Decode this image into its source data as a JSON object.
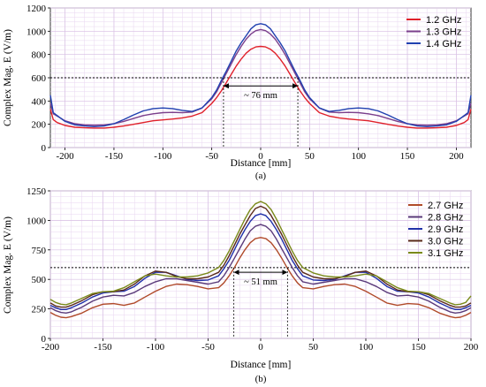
{
  "chart_data": [
    {
      "type": "line",
      "caption": "(a)",
      "xlabel": "Distance [mm]",
      "ylabel": "Complex Mag. E (V/m)",
      "xlim": [
        -215,
        215
      ],
      "ylim": [
        0,
        1200
      ],
      "xticks": [
        -200,
        -150,
        -100,
        -50,
        0,
        50,
        100,
        150,
        200
      ],
      "yticks": [
        0,
        200,
        400,
        600,
        800,
        1000,
        1200
      ],
      "grid": true,
      "legend_position": "top-right",
      "threshold": 600,
      "annotation": {
        "text": "~ 76 mm",
        "x_range": [
          -38,
          38
        ],
        "y": 530
      },
      "series": [
        {
          "name": "1.2 GHz",
          "color": "#e0202a",
          "x": [
            -215,
            -212,
            -208,
            -200,
            -190,
            -180,
            -170,
            -160,
            -150,
            -140,
            -130,
            -120,
            -110,
            -100,
            -90,
            -80,
            -70,
            -60,
            -50,
            -45,
            -40,
            -35,
            -30,
            -25,
            -20,
            -15,
            -10,
            -5,
            0,
            5,
            10,
            15,
            20,
            25,
            30,
            35,
            40,
            45,
            50,
            60,
            70,
            80,
            90,
            100,
            110,
            120,
            130,
            140,
            150,
            160,
            170,
            180,
            190,
            200,
            208,
            212,
            215
          ],
          "y": [
            330,
            240,
            215,
            190,
            175,
            170,
            168,
            168,
            175,
            185,
            200,
            215,
            230,
            238,
            245,
            255,
            270,
            300,
            380,
            430,
            490,
            560,
            630,
            700,
            760,
            810,
            845,
            865,
            870,
            865,
            845,
            810,
            760,
            700,
            630,
            560,
            490,
            430,
            380,
            300,
            270,
            255,
            245,
            238,
            230,
            215,
            200,
            185,
            175,
            168,
            168,
            170,
            175,
            190,
            215,
            240,
            330
          ]
        },
        {
          "name": "1.3 GHz",
          "color": "#7b3f8c",
          "x": [
            -215,
            -212,
            -208,
            -200,
            -190,
            -180,
            -170,
            -160,
            -150,
            -140,
            -130,
            -120,
            -110,
            -100,
            -90,
            -80,
            -70,
            -60,
            -50,
            -45,
            -40,
            -35,
            -30,
            -25,
            -20,
            -15,
            -10,
            -5,
            0,
            5,
            10,
            15,
            20,
            25,
            30,
            35,
            40,
            45,
            50,
            60,
            70,
            80,
            90,
            100,
            110,
            120,
            130,
            140,
            150,
            160,
            170,
            180,
            190,
            200,
            208,
            212,
            215
          ],
          "y": [
            380,
            290,
            270,
            230,
            205,
            195,
            192,
            195,
            205,
            225,
            250,
            275,
            290,
            300,
            302,
            300,
            305,
            340,
            420,
            480,
            560,
            640,
            720,
            800,
            870,
            930,
            975,
            1005,
            1015,
            1005,
            975,
            930,
            870,
            800,
            720,
            640,
            560,
            480,
            420,
            340,
            305,
            300,
            302,
            300,
            290,
            275,
            250,
            225,
            205,
            195,
            192,
            195,
            205,
            230,
            270,
            290,
            380
          ]
        },
        {
          "name": "1.4 GHz",
          "color": "#2040b0",
          "x": [
            -215,
            -212,
            -208,
            -200,
            -190,
            -180,
            -170,
            -160,
            -150,
            -140,
            -130,
            -120,
            -110,
            -100,
            -90,
            -80,
            -70,
            -60,
            -50,
            -45,
            -40,
            -35,
            -30,
            -25,
            -20,
            -15,
            -10,
            -5,
            0,
            5,
            10,
            15,
            20,
            25,
            30,
            35,
            40,
            45,
            50,
            60,
            70,
            80,
            90,
            100,
            110,
            120,
            130,
            140,
            150,
            160,
            170,
            180,
            190,
            200,
            208,
            212,
            215
          ],
          "y": [
            450,
            300,
            275,
            225,
            195,
            185,
            180,
            185,
            205,
            240,
            280,
            315,
            335,
            340,
            335,
            320,
            310,
            340,
            430,
            495,
            580,
            660,
            745,
            830,
            900,
            960,
            1020,
            1055,
            1065,
            1055,
            1020,
            960,
            900,
            830,
            745,
            660,
            580,
            495,
            430,
            340,
            310,
            320,
            335,
            340,
            335,
            315,
            280,
            240,
            205,
            185,
            180,
            185,
            195,
            225,
            275,
            300,
            450
          ]
        }
      ]
    },
    {
      "type": "line",
      "caption": "(b)",
      "xlabel": "Distance [mm]",
      "ylabel": "Complex Mag. E (V/m)",
      "xlim": [
        -200,
        200
      ],
      "ylim": [
        0,
        1250
      ],
      "xticks": [
        -200,
        -150,
        -100,
        -50,
        0,
        50,
        100,
        150,
        200
      ],
      "yticks": [
        0,
        250,
        500,
        750,
        1000,
        1250
      ],
      "grid": true,
      "legend_position": "top-right",
      "threshold": 600,
      "annotation": {
        "text": "~ 51 mm",
        "x_range": [
          -25.5,
          25.5
        ],
        "y": 560
      },
      "series": [
        {
          "name": "2.7 GHz",
          "color": "#b04a2a",
          "x": [
            -200,
            -195,
            -190,
            -185,
            -180,
            -170,
            -160,
            -150,
            -140,
            -130,
            -120,
            -110,
            -100,
            -90,
            -80,
            -70,
            -60,
            -50,
            -40,
            -35,
            -30,
            -25,
            -20,
            -15,
            -10,
            -5,
            0,
            5,
            10,
            15,
            20,
            25,
            30,
            35,
            40,
            50,
            60,
            70,
            80,
            90,
            100,
            110,
            120,
            130,
            140,
            150,
            160,
            170,
            180,
            185,
            190,
            195,
            200
          ],
          "y": [
            220,
            195,
            180,
            175,
            185,
            215,
            260,
            290,
            295,
            280,
            300,
            350,
            400,
            440,
            460,
            455,
            440,
            420,
            430,
            470,
            530,
            600,
            680,
            750,
            810,
            845,
            855,
            845,
            810,
            750,
            680,
            600,
            530,
            470,
            430,
            420,
            440,
            455,
            460,
            440,
            400,
            350,
            300,
            280,
            295,
            290,
            260,
            215,
            185,
            175,
            180,
            195,
            220
          ]
        },
        {
          "name": "2.8 GHz",
          "color": "#5a3a7a",
          "x": [
            -200,
            -195,
            -190,
            -185,
            -180,
            -170,
            -160,
            -150,
            -140,
            -130,
            -120,
            -110,
            -100,
            -90,
            -80,
            -70,
            -60,
            -50,
            -40,
            -35,
            -30,
            -25,
            -20,
            -15,
            -10,
            -5,
            0,
            5,
            10,
            15,
            20,
            25,
            30,
            35,
            40,
            50,
            60,
            70,
            80,
            90,
            100,
            110,
            120,
            130,
            140,
            150,
            160,
            170,
            180,
            185,
            190,
            195,
            200
          ],
          "y": [
            260,
            235,
            220,
            215,
            225,
            265,
            315,
            350,
            365,
            360,
            390,
            440,
            480,
            505,
            505,
            490,
            475,
            460,
            480,
            530,
            600,
            680,
            760,
            840,
            910,
            950,
            965,
            950,
            910,
            840,
            760,
            680,
            600,
            530,
            480,
            460,
            475,
            490,
            505,
            505,
            480,
            440,
            390,
            360,
            365,
            350,
            315,
            265,
            225,
            215,
            220,
            235,
            260
          ]
        },
        {
          "name": "2.9 GHz",
          "color": "#2030a8",
          "x": [
            -200,
            -195,
            -190,
            -185,
            -180,
            -170,
            -160,
            -150,
            -140,
            -130,
            -120,
            -110,
            -100,
            -90,
            -80,
            -70,
            -60,
            -50,
            -40,
            -35,
            -30,
            -25,
            -20,
            -15,
            -10,
            -5,
            0,
            5,
            10,
            15,
            20,
            25,
            30,
            35,
            40,
            50,
            60,
            70,
            80,
            90,
            100,
            110,
            120,
            130,
            140,
            150,
            160,
            170,
            180,
            185,
            190,
            195,
            200
          ],
          "y": [
            280,
            260,
            245,
            245,
            260,
            300,
            350,
            385,
            395,
            400,
            440,
            510,
            560,
            560,
            530,
            500,
            490,
            495,
            530,
            590,
            660,
            750,
            840,
            920,
            990,
            1040,
            1055,
            1040,
            990,
            920,
            840,
            750,
            660,
            590,
            530,
            495,
            490,
            500,
            530,
            560,
            560,
            510,
            440,
            400,
            395,
            385,
            350,
            300,
            260,
            245,
            245,
            260,
            280
          ]
        },
        {
          "name": "3.0 GHz",
          "color": "#5a2a1a",
          "x": [
            -200,
            -195,
            -190,
            -185,
            -180,
            -170,
            -160,
            -150,
            -140,
            -130,
            -120,
            -110,
            -100,
            -90,
            -80,
            -70,
            -60,
            -50,
            -40,
            -35,
            -30,
            -25,
            -20,
            -15,
            -10,
            -5,
            0,
            5,
            10,
            15,
            20,
            25,
            30,
            35,
            40,
            50,
            60,
            70,
            80,
            90,
            100,
            110,
            120,
            130,
            140,
            150,
            160,
            170,
            180,
            185,
            190,
            195,
            200
          ],
          "y": [
            300,
            275,
            265,
            265,
            280,
            320,
            370,
            395,
            395,
            410,
            460,
            530,
            570,
            560,
            525,
            505,
            505,
            520,
            560,
            620,
            700,
            790,
            880,
            960,
            1040,
            1100,
            1120,
            1100,
            1040,
            960,
            880,
            790,
            700,
            620,
            560,
            520,
            505,
            505,
            525,
            560,
            570,
            530,
            460,
            410,
            395,
            395,
            370,
            320,
            280,
            265,
            265,
            275,
            300
          ]
        },
        {
          "name": "3.1 GHz",
          "color": "#7a8a1a",
          "x": [
            -200,
            -195,
            -190,
            -185,
            -180,
            -170,
            -160,
            -150,
            -140,
            -130,
            -120,
            -110,
            -100,
            -90,
            -80,
            -70,
            -60,
            -50,
            -40,
            -35,
            -30,
            -25,
            -20,
            -15,
            -10,
            -5,
            0,
            5,
            10,
            15,
            20,
            25,
            30,
            35,
            40,
            50,
            60,
            70,
            80,
            90,
            100,
            110,
            120,
            130,
            140,
            150,
            160,
            170,
            180,
            185,
            190,
            195,
            200
          ],
          "y": [
            330,
            305,
            290,
            285,
            300,
            340,
            380,
            395,
            400,
            430,
            480,
            530,
            545,
            530,
            520,
            520,
            530,
            555,
            600,
            660,
            740,
            830,
            920,
            1010,
            1090,
            1140,
            1160,
            1140,
            1090,
            1010,
            920,
            830,
            740,
            660,
            600,
            555,
            530,
            520,
            520,
            530,
            545,
            530,
            480,
            430,
            400,
            395,
            380,
            340,
            300,
            285,
            290,
            305,
            360
          ]
        }
      ]
    }
  ]
}
